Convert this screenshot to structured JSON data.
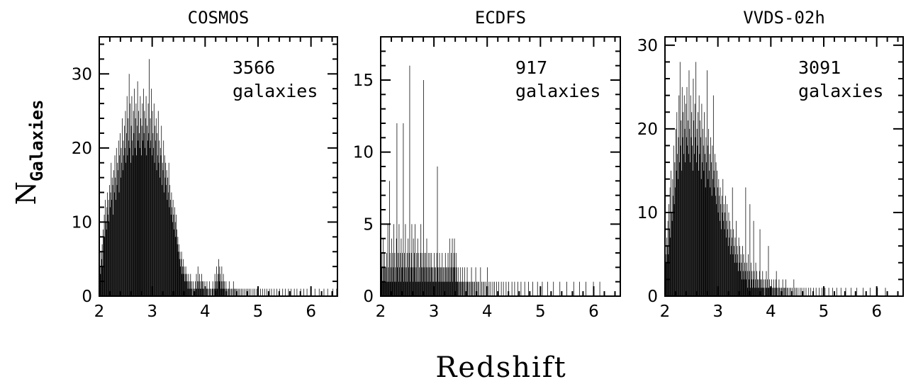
{
  "figure": {
    "xlabel": "Redshift",
    "ylabel_main": "N",
    "ylabel_sub": "Galaxies"
  },
  "chart_data": [
    {
      "type": "bar",
      "title": "COSMOS",
      "annotation_count": "3566",
      "annotation_word": "galaxies",
      "xlim": [
        2.0,
        6.5
      ],
      "ylim": [
        0,
        35
      ],
      "xticks": [
        2,
        3,
        4,
        5,
        6
      ],
      "yticks": [
        0,
        10,
        20,
        30
      ],
      "bin_width": 0.01,
      "bin_start": 2.0,
      "values": [
        2,
        4,
        3,
        6,
        5,
        7,
        4,
        9,
        8,
        11,
        8,
        13,
        10,
        9,
        12,
        14,
        11,
        13,
        10,
        15,
        12,
        14,
        18,
        13,
        16,
        15,
        11,
        17,
        14,
        19,
        16,
        13,
        20,
        15,
        18,
        17,
        21,
        14,
        19,
        22,
        16,
        20,
        18,
        24,
        17,
        21,
        19,
        23,
        20,
        25,
        18,
        22,
        27,
        19,
        24,
        21,
        30,
        20,
        26,
        18,
        23,
        27,
        21,
        19,
        25,
        22,
        28,
        20,
        24,
        26,
        19,
        23,
        29,
        21,
        25,
        22,
        20,
        27,
        24,
        19,
        23,
        26,
        21,
        28,
        22,
        25,
        20,
        24,
        27,
        19,
        23,
        21,
        26,
        22,
        32,
        20,
        24,
        21,
        28,
        19,
        25,
        22,
        20,
        26,
        18,
        23,
        21,
        24,
        17,
        22,
        19,
        25,
        18,
        21,
        16,
        20,
        19,
        23,
        15,
        18,
        17,
        21,
        14,
        19,
        16,
        18,
        15,
        17,
        13,
        16,
        14,
        18,
        12,
        15,
        13,
        11,
        14,
        12,
        10,
        13,
        11,
        9,
        12,
        10,
        8,
        11,
        9,
        7,
        8,
        6,
        7,
        5,
        6,
        4,
        5,
        6,
        3,
        4,
        5,
        3,
        4,
        2,
        3,
        4,
        2,
        3,
        2,
        1,
        3,
        2,
        1,
        2,
        3,
        1,
        2,
        1,
        0,
        2,
        1,
        0,
        1,
        2,
        1,
        3,
        1,
        2,
        4,
        1,
        2,
        3,
        1,
        2,
        1,
        3,
        2,
        1,
        2,
        1,
        0,
        2,
        1,
        0,
        1,
        2,
        1,
        0,
        1,
        0,
        2,
        1,
        0,
        1,
        0,
        1,
        2,
        1,
        0,
        1,
        3,
        2,
        1,
        4,
        2,
        1,
        3,
        5,
        2,
        4,
        3,
        1,
        2,
        4,
        1,
        2,
        3,
        1,
        2,
        1,
        0,
        2,
        1,
        0,
        1,
        0,
        1,
        2,
        0,
        1,
        0,
        1,
        0,
        1,
        0,
        2,
        1,
        0,
        1,
        0,
        1,
        0,
        1,
        0,
        0,
        1,
        0,
        1,
        0,
        0,
        1,
        0,
        0,
        1,
        0,
        0,
        1,
        0,
        0,
        1,
        0,
        0,
        1,
        0,
        0,
        1,
        0,
        0,
        1,
        0,
        0,
        0,
        1,
        0,
        0,
        1,
        0,
        0,
        0,
        1,
        0,
        0,
        1,
        0,
        0,
        0,
        1,
        0,
        0,
        0,
        1,
        0,
        0,
        0,
        1,
        0,
        0,
        0,
        1,
        0,
        0,
        0,
        0,
        1,
        0,
        0,
        0,
        1,
        0,
        0,
        0,
        0,
        1,
        0,
        0,
        0,
        0,
        1,
        0,
        0,
        0,
        0,
        1,
        0,
        0,
        0,
        0,
        0,
        1,
        0,
        0,
        0,
        0,
        1,
        0,
        0,
        0,
        0,
        0,
        1,
        0,
        0,
        0,
        0,
        1,
        0,
        0,
        0,
        0,
        0,
        1,
        0,
        0,
        0,
        0,
        1,
        0,
        0,
        0,
        0,
        0,
        0,
        1,
        0,
        0,
        0,
        0,
        0,
        1,
        0,
        0,
        0,
        0,
        0,
        1,
        0,
        0,
        0,
        0,
        0,
        0,
        1,
        0,
        0,
        0,
        0,
        0,
        0,
        0,
        1,
        0,
        0,
        0,
        0,
        0,
        0,
        0,
        1,
        0,
        0,
        0,
        0,
        0,
        0,
        0,
        0,
        1,
        0,
        0,
        0,
        0,
        0,
        0,
        1,
        0,
        0,
        0,
        0,
        0,
        0,
        0,
        0,
        0,
        1,
        0,
        0,
        0,
        0,
        0,
        0,
        1,
        0,
        0,
        0,
        0,
        0,
        1,
        0,
        0
      ]
    },
    {
      "type": "bar",
      "title": "ECDFS",
      "annotation_count": "917",
      "annotation_word": "galaxies",
      "xlim": [
        2.0,
        6.5
      ],
      "ylim": [
        0,
        18
      ],
      "xticks": [
        2,
        3,
        4,
        5,
        6
      ],
      "yticks": [
        0,
        5,
        10,
        15
      ],
      "bin_width": 0.01,
      "bin_start": 2.0,
      "values": [
        1,
        3,
        2,
        1,
        4,
        2,
        1,
        3,
        2,
        1,
        2,
        3,
        1,
        5,
        2,
        1,
        8,
        3,
        1,
        2,
        4,
        1,
        3,
        2,
        5,
        1,
        3,
        2,
        1,
        4,
        12,
        2,
        3,
        1,
        5,
        2,
        3,
        1,
        4,
        2,
        3,
        2,
        12,
        1,
        3,
        2,
        5,
        1,
        2,
        3,
        1,
        4,
        2,
        3,
        16,
        1,
        2,
        3,
        5,
        2,
        1,
        4,
        2,
        3,
        5,
        1,
        2,
        3,
        1,
        4,
        3,
        1,
        2,
        1,
        3,
        5,
        2,
        3,
        1,
        2,
        15,
        3,
        2,
        1,
        3,
        2,
        4,
        1,
        2,
        3,
        1,
        2,
        3,
        1,
        2,
        3,
        2,
        1,
        2,
        1,
        3,
        2,
        1,
        2,
        1,
        3,
        9,
        2,
        1,
        2,
        3,
        1,
        2,
        1,
        2,
        3,
        1,
        2,
        1,
        2,
        1,
        3,
        2,
        1,
        2,
        1,
        3,
        2,
        1,
        4,
        2,
        1,
        3,
        2,
        4,
        1,
        2,
        3,
        4,
        2,
        1,
        3,
        2,
        1,
        1,
        2,
        1,
        0,
        1,
        2,
        1,
        0,
        1,
        2,
        1,
        0,
        1,
        2,
        0,
        1,
        0,
        1,
        2,
        1,
        0,
        1,
        0,
        1,
        0,
        1,
        2,
        0,
        1,
        0,
        1,
        0,
        1,
        0,
        2,
        0,
        1,
        0,
        1,
        0,
        1,
        0,
        0,
        2,
        0,
        1,
        0,
        0,
        1,
        0,
        1,
        0,
        0,
        1,
        0,
        0,
        2,
        0,
        0,
        1,
        0,
        0,
        1,
        0,
        0,
        0,
        1,
        0,
        0,
        1,
        0,
        0,
        0,
        1,
        0,
        0,
        0,
        1,
        0,
        0,
        0,
        0,
        1,
        0,
        0,
        0,
        1,
        0,
        0,
        0,
        0,
        1,
        0,
        0,
        0,
        0,
        1,
        0,
        0,
        0,
        0,
        0,
        1,
        0,
        0,
        0,
        0,
        1,
        0,
        0,
        0,
        0,
        0,
        1,
        0,
        0,
        0,
        0,
        0,
        1,
        0,
        0,
        0,
        0,
        0,
        0,
        1,
        0,
        0,
        0,
        0,
        0,
        0,
        1,
        0,
        0,
        0,
        0,
        0,
        0,
        0,
        1,
        0,
        0,
        0,
        0,
        0,
        0,
        0,
        0,
        1,
        0,
        0,
        0,
        0,
        0,
        0,
        0,
        0,
        1,
        0,
        0,
        0,
        0,
        0,
        0,
        0,
        0,
        0,
        1,
        0,
        0,
        0,
        0,
        0,
        0,
        0,
        0,
        0,
        0,
        1,
        0,
        0,
        0,
        0,
        0,
        0,
        0,
        0,
        0,
        0,
        0,
        1,
        0,
        0,
        0,
        0,
        0,
        0,
        0,
        0,
        0,
        0,
        0,
        0,
        1,
        0,
        0,
        0,
        0,
        0,
        0,
        0,
        0,
        0,
        0,
        0,
        0,
        1,
        0,
        0,
        0,
        0,
        0,
        0,
        0,
        0,
        0,
        0,
        1,
        0,
        0,
        0,
        0,
        0,
        0,
        0,
        0,
        0,
        0,
        0,
        1,
        0,
        0,
        0,
        0,
        0,
        0,
        0,
        0,
        0,
        0,
        0,
        0,
        0,
        1,
        0,
        0,
        0,
        0,
        0,
        0,
        0,
        0,
        0,
        0,
        0,
        1,
        0,
        0,
        0,
        0,
        0,
        0,
        0,
        0,
        0,
        0,
        0,
        0,
        0,
        0,
        0,
        0,
        0,
        0,
        0,
        0,
        0,
        0,
        0,
        0,
        0,
        0,
        0,
        0,
        0,
        0,
        0,
        0,
        0,
        0,
        0,
        0,
        0,
        0,
        0,
        0,
        0,
        0,
        0,
        0,
        0,
        0,
        0
      ]
    },
    {
      "type": "bar",
      "title": "VVDS-02h",
      "annotation_count": "3091",
      "annotation_word": "galaxies",
      "xlim": [
        2.0,
        6.5
      ],
      "ylim": [
        0,
        31
      ],
      "xticks": [
        2,
        3,
        4,
        5,
        6
      ],
      "yticks": [
        0,
        10,
        20,
        30
      ],
      "bin_width": 0.01,
      "bin_start": 2.0,
      "values": [
        3,
        5,
        4,
        7,
        6,
        9,
        5,
        11,
        8,
        13,
        7,
        15,
        10,
        9,
        14,
        12,
        18,
        11,
        16,
        13,
        20,
        15,
        22,
        17,
        14,
        19,
        24,
        16,
        28,
        18,
        21,
        15,
        25,
        19,
        22,
        17,
        24,
        20,
        16,
        23,
        19,
        25,
        18,
        21,
        17,
        27,
        20,
        16,
        24,
        19,
        22,
        18,
        15,
        26,
        21,
        17,
        23,
        19,
        28,
        16,
        20,
        18,
        22,
        15,
        24,
        17,
        21,
        19,
        14,
        23,
        16,
        20,
        18,
        15,
        22,
        17,
        13,
        19,
        16,
        27,
        18,
        14,
        20,
        15,
        17,
        13,
        19,
        16,
        12,
        18,
        14,
        24,
        15,
        13,
        17,
        12,
        16,
        11,
        15,
        13,
        10,
        14,
        12,
        9,
        13,
        11,
        8,
        12,
        10,
        14,
        9,
        11,
        8,
        10,
        12,
        7,
        9,
        11,
        8,
        6,
        10,
        7,
        9,
        5,
        8,
        6,
        7,
        13,
        5,
        8,
        6,
        4,
        7,
        5,
        9,
        4,
        6,
        5,
        3,
        7,
        4,
        6,
        3,
        5,
        4,
        2,
        6,
        3,
        5,
        2,
        4,
        3,
        13,
        2,
        4,
        3,
        1,
        5,
        2,
        3,
        11,
        1,
        4,
        2,
        3,
        1,
        2,
        9,
        3,
        1,
        2,
        4,
        1,
        3,
        2,
        1,
        2,
        1,
        3,
        8,
        2,
        1,
        2,
        1,
        3,
        1,
        2,
        1,
        0,
        2,
        1,
        3,
        1,
        2,
        1,
        6,
        1,
        2,
        1,
        0,
        1,
        2,
        1,
        0,
        1,
        2,
        1,
        0,
        1,
        2,
        3,
        1,
        0,
        1,
        0,
        2,
        1,
        0,
        1,
        0,
        1,
        0,
        2,
        1,
        0,
        1,
        0,
        1,
        2,
        0,
        1,
        0,
        1,
        0,
        0,
        1,
        0,
        1,
        0,
        0,
        1,
        0,
        0,
        2,
        0,
        1,
        0,
        0,
        1,
        0,
        0,
        1,
        0,
        0,
        0,
        1,
        0,
        0,
        1,
        0,
        0,
        0,
        1,
        0,
        0,
        0,
        1,
        0,
        0,
        0,
        0,
        1,
        0,
        0,
        0,
        1,
        0,
        0,
        0,
        0,
        1,
        0,
        0,
        0,
        0,
        1,
        0,
        0,
        0,
        0,
        0,
        1,
        0,
        0,
        0,
        0,
        1,
        0,
        0,
        0,
        0,
        0,
        1,
        0,
        0,
        0,
        0,
        0,
        0,
        1,
        0,
        0,
        0,
        0,
        0,
        0,
        1,
        0,
        0,
        0,
        0,
        0,
        0,
        0,
        1,
        0,
        0,
        0,
        0,
        0,
        0,
        0,
        1,
        0,
        0,
        0,
        0,
        0,
        0,
        0,
        0,
        1,
        0,
        0,
        0,
        0,
        0,
        0,
        0,
        0,
        0,
        1,
        0,
        0,
        0,
        0,
        0,
        0,
        0,
        0,
        0,
        0,
        1,
        0,
        0,
        0,
        0,
        0,
        0,
        0,
        0,
        0,
        0,
        0,
        1,
        0,
        0,
        0,
        0,
        0,
        0,
        0,
        0,
        0,
        0,
        0,
        0,
        1,
        0,
        0,
        0,
        0,
        0,
        0,
        0,
        0,
        0,
        0,
        0,
        0,
        0,
        1,
        0,
        0,
        0,
        0,
        0,
        0,
        0,
        0,
        0,
        0,
        0,
        0,
        0,
        0,
        1,
        0,
        0,
        0,
        0,
        0,
        0,
        0,
        0,
        0,
        0,
        0,
        0,
        0,
        0,
        0,
        0,
        0,
        0,
        0,
        0,
        0,
        0,
        0,
        0,
        0,
        0,
        0,
        0,
        0,
        0,
        0,
        0,
        0,
        0,
        0,
        0,
        0,
        0,
        0,
        0,
        0,
        0,
        0,
        0,
        0,
        0,
        0,
        0,
        0,
        0,
        0
      ]
    }
  ]
}
